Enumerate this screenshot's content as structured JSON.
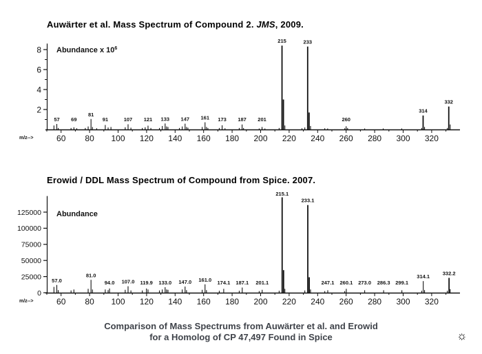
{
  "page": {
    "background": "#ffffff",
    "ink_color": "#111111",
    "caption_color": "#3f434a",
    "caption_line1": "Comparison of Mass Spectrums from Auwärter et al. and Erowid",
    "caption_line2": "for a Homolog of CP 47,497 Found in Spice"
  },
  "icons": {
    "sun_glyph": "☼"
  },
  "chart_data": [
    {
      "type": "bar",
      "variant": "mass-spectrum",
      "title_prefix": "Auwärter et al. Mass Spectrum of Compound 2. ",
      "title_italic": "JMS",
      "title_suffix": ", 2009.",
      "ylabel": "Abundance x 10",
      "ylabel_superscript": "6",
      "xlabel": "m/z-->",
      "xlim": [
        50,
        338
      ],
      "ylim": [
        0,
        8.6
      ],
      "yticks": [
        2,
        4,
        6,
        8
      ],
      "yminor": [
        1,
        3,
        5,
        7
      ],
      "xtick_labels": [
        60,
        80,
        100,
        120,
        140,
        160,
        180,
        200,
        220,
        240,
        260,
        280,
        300,
        320
      ],
      "xminor_step": 10,
      "grid": false,
      "peaks": [
        [
          55,
          0.4,
          ""
        ],
        [
          57,
          0.55,
          "57"
        ],
        [
          58,
          0.15,
          ""
        ],
        [
          67,
          0.15,
          ""
        ],
        [
          69,
          0.22,
          "69"
        ],
        [
          71,
          0.12,
          ""
        ],
        [
          77,
          0.15,
          ""
        ],
        [
          79,
          0.3,
          ""
        ],
        [
          81,
          1.05,
          "81"
        ],
        [
          82,
          0.25,
          ""
        ],
        [
          85,
          0.12,
          ""
        ],
        [
          91,
          0.45,
          "91"
        ],
        [
          93,
          0.2,
          ""
        ],
        [
          95,
          0.25,
          ""
        ],
        [
          105,
          0.22,
          ""
        ],
        [
          107,
          0.52,
          "107"
        ],
        [
          109,
          0.18,
          ""
        ],
        [
          117,
          0.15,
          ""
        ],
        [
          119,
          0.22,
          ""
        ],
        [
          121,
          0.38,
          "121"
        ],
        [
          123,
          0.15,
          ""
        ],
        [
          129,
          0.15,
          ""
        ],
        [
          131,
          0.35,
          ""
        ],
        [
          133,
          0.6,
          "133"
        ],
        [
          134,
          0.3,
          ""
        ],
        [
          135,
          0.25,
          ""
        ],
        [
          143,
          0.15,
          ""
        ],
        [
          145,
          0.3,
          ""
        ],
        [
          147,
          0.58,
          "147"
        ],
        [
          148,
          0.25,
          ""
        ],
        [
          149,
          0.18,
          ""
        ],
        [
          159,
          0.25,
          ""
        ],
        [
          161,
          0.72,
          "161"
        ],
        [
          162,
          0.25,
          ""
        ],
        [
          163,
          0.15,
          ""
        ],
        [
          171,
          0.15,
          ""
        ],
        [
          173,
          0.42,
          "173"
        ],
        [
          175,
          0.12,
          ""
        ],
        [
          185,
          0.15,
          ""
        ],
        [
          187,
          0.5,
          "187"
        ],
        [
          188,
          0.15,
          ""
        ],
        [
          199,
          0.1,
          ""
        ],
        [
          201,
          0.25,
          "201"
        ],
        [
          203,
          0.1,
          ""
        ],
        [
          213,
          0.15,
          ""
        ],
        [
          215,
          8.4,
          "215"
        ],
        [
          216,
          3.0,
          ""
        ],
        [
          217,
          0.4,
          ""
        ],
        [
          229,
          0.12,
          ""
        ],
        [
          231,
          0.2,
          ""
        ],
        [
          233,
          8.3,
          "233"
        ],
        [
          234,
          1.7,
          ""
        ],
        [
          235,
          0.35,
          ""
        ],
        [
          245,
          0.12,
          ""
        ],
        [
          247,
          0.1,
          ""
        ],
        [
          259,
          0.12,
          ""
        ],
        [
          260,
          0.32,
          "260"
        ],
        [
          261,
          0.15,
          ""
        ],
        [
          273,
          0.1,
          ""
        ],
        [
          286,
          0.1,
          ""
        ],
        [
          299,
          0.1,
          ""
        ],
        [
          313,
          0.15,
          ""
        ],
        [
          314,
          1.4,
          "314"
        ],
        [
          315,
          0.25,
          ""
        ],
        [
          331,
          0.15,
          ""
        ],
        [
          332,
          2.3,
          "332"
        ],
        [
          333,
          0.5,
          ""
        ]
      ]
    },
    {
      "type": "bar",
      "variant": "mass-spectrum",
      "title_prefix": "Erowid / DDL Mass Spectrum of Compound from Spice. 2007.",
      "title_italic": "",
      "title_suffix": "",
      "ylabel": "Abundance",
      "ylabel_superscript": "",
      "xlabel": "m/z-->",
      "xlim": [
        50,
        338
      ],
      "ylim": [
        0,
        150000
      ],
      "yticks": [
        0,
        25000,
        50000,
        75000,
        100000,
        125000
      ],
      "yminor": [],
      "xtick_labels": [
        60,
        80,
        100,
        120,
        140,
        160,
        180,
        200,
        220,
        240,
        260,
        280,
        300,
        320
      ],
      "xminor_step": 10,
      "grid": false,
      "peaks": [
        [
          55,
          9000,
          ""
        ],
        [
          57,
          12000,
          "57.0"
        ],
        [
          58,
          4000,
          ""
        ],
        [
          67,
          3500,
          ""
        ],
        [
          69,
          5000,
          ""
        ],
        [
          79,
          6000,
          ""
        ],
        [
          81,
          20000,
          "81.0"
        ],
        [
          82,
          5000,
          ""
        ],
        [
          91,
          5000,
          ""
        ],
        [
          93,
          4000,
          ""
        ],
        [
          94,
          6500,
          "94.0"
        ],
        [
          105,
          4500,
          ""
        ],
        [
          107,
          10000,
          "107.0"
        ],
        [
          109,
          3500,
          ""
        ],
        [
          117,
          3500,
          ""
        ],
        [
          119.9,
          6500,
          "119.9"
        ],
        [
          121,
          5000,
          ""
        ],
        [
          129,
          3500,
          ""
        ],
        [
          131,
          5000,
          ""
        ],
        [
          133,
          8500,
          "133.0"
        ],
        [
          134,
          5000,
          ""
        ],
        [
          135,
          4500,
          ""
        ],
        [
          145,
          5000,
          ""
        ],
        [
          147,
          9500,
          "147.0"
        ],
        [
          148,
          4000,
          ""
        ],
        [
          159,
          4500,
          ""
        ],
        [
          161,
          13000,
          "161.0"
        ],
        [
          162,
          4000,
          ""
        ],
        [
          171,
          3000,
          ""
        ],
        [
          174.1,
          6000,
          "174.1"
        ],
        [
          185,
          3000,
          ""
        ],
        [
          187.1,
          8000,
          "187.1"
        ],
        [
          199,
          2500,
          ""
        ],
        [
          201.1,
          4500,
          "201.1"
        ],
        [
          213,
          3000,
          ""
        ],
        [
          215.1,
          148000,
          "215.1"
        ],
        [
          216.1,
          35000,
          ""
        ],
        [
          217,
          6000,
          ""
        ],
        [
          231,
          3500,
          ""
        ],
        [
          233.1,
          136000,
          "233.1"
        ],
        [
          234.1,
          24000,
          ""
        ],
        [
          235,
          5000,
          ""
        ],
        [
          245,
          2500,
          ""
        ],
        [
          247.1,
          3800,
          "247.1"
        ],
        [
          259,
          2500,
          ""
        ],
        [
          260.1,
          6000,
          "260.1"
        ],
        [
          273,
          3800,
          "273.0"
        ],
        [
          286.3,
          3800,
          "286.3"
        ],
        [
          299.1,
          3800,
          "299.1"
        ],
        [
          313,
          3000,
          ""
        ],
        [
          314.1,
          18000,
          "314.1"
        ],
        [
          315,
          4000,
          ""
        ],
        [
          331,
          3000,
          ""
        ],
        [
          332.2,
          23000,
          "332.2"
        ],
        [
          333,
          5500,
          ""
        ]
      ]
    }
  ]
}
